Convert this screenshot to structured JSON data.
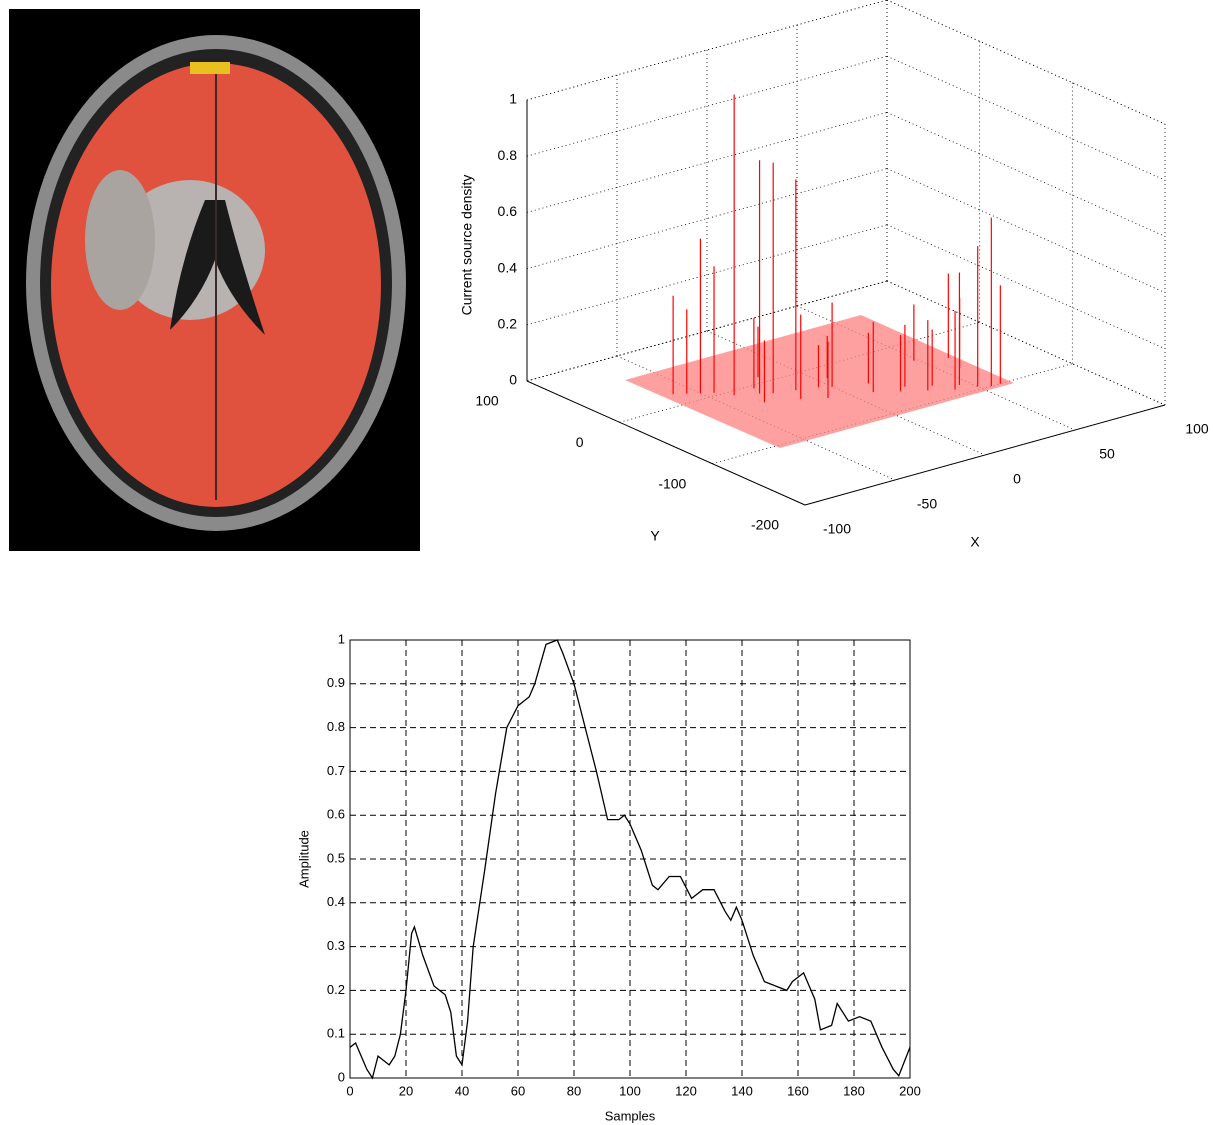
{
  "chart_data": [
    {
      "type": "stem3d",
      "xlabel": "X",
      "ylabel": "Y",
      "zlabel": "Current source density",
      "xlim": [
        -100,
        100
      ],
      "ylim": [
        -200,
        100
      ],
      "zlim": [
        0,
        1
      ],
      "xticks": [
        -100,
        -50,
        0,
        50,
        100
      ],
      "yticks": [
        -200,
        -100,
        0,
        100
      ],
      "zticks": [
        0,
        0.2,
        0.4,
        0.6,
        0.8,
        1
      ],
      "grid": true,
      "series": [
        {
          "color": "#ff0000",
          "x": [
            -40,
            -30,
            -25,
            -15,
            -50,
            -60,
            -20,
            10,
            40,
            55,
            50,
            60,
            45,
            -10,
            20,
            -45,
            0,
            30,
            -35,
            15,
            -55,
            -5,
            25,
            35,
            58,
            62,
            -28,
            5,
            48,
            -18
          ],
          "y": [
            -7,
            -15,
            -20,
            -25,
            10,
            20,
            -40,
            -60,
            -90,
            -100,
            -95,
            -100,
            -85,
            -50,
            -70,
            5,
            -35,
            -80,
            -30,
            -45,
            15,
            -30,
            -65,
            -75,
            -60,
            -40,
            -5,
            -20,
            -30,
            10
          ],
          "z": [
            1.07,
            0.83,
            0.82,
            0.75,
            0.55,
            0.35,
            0.3,
            0.25,
            0.28,
            0.6,
            0.5,
            0.35,
            0.4,
            0.2,
            0.2,
            0.45,
            0.3,
            0.25,
            0.22,
            0.18,
            0.3,
            0.15,
            0.22,
            0.2,
            0.25,
            0.3,
            0.25,
            0.15,
            0.2,
            0.18
          ]
        }
      ]
    },
    {
      "type": "line",
      "xlabel": "Samples",
      "ylabel": "Amplitude",
      "xlim": [
        0,
        200
      ],
      "ylim": [
        0,
        1
      ],
      "xticks": [
        0,
        20,
        40,
        60,
        80,
        100,
        120,
        140,
        160,
        180,
        200
      ],
      "yticks": [
        0,
        0.1,
        0.2,
        0.3,
        0.4,
        0.5,
        0.6,
        0.7,
        0.8,
        0.9,
        1
      ],
      "grid": true,
      "color": "#000000",
      "x": [
        0,
        2,
        4,
        6,
        8,
        10,
        12,
        14,
        16,
        18,
        20,
        22,
        23,
        26,
        30,
        34,
        36,
        38,
        40,
        42,
        44,
        48,
        52,
        56,
        60,
        64,
        66,
        70,
        74,
        76,
        80,
        84,
        88,
        92,
        96,
        98,
        100,
        104,
        108,
        110,
        114,
        118,
        122,
        126,
        130,
        134,
        136,
        138,
        140,
        144,
        148,
        152,
        156,
        158,
        162,
        166,
        168,
        172,
        174,
        178,
        182,
        186,
        190,
        194,
        196,
        200
      ],
      "y": [
        0.07,
        0.08,
        0.05,
        0.02,
        0.0,
        0.05,
        0.04,
        0.03,
        0.05,
        0.1,
        0.2,
        0.33,
        0.345,
        0.28,
        0.21,
        0.19,
        0.15,
        0.05,
        0.03,
        0.13,
        0.3,
        0.47,
        0.65,
        0.8,
        0.85,
        0.87,
        0.9,
        0.99,
        1.0,
        0.97,
        0.9,
        0.8,
        0.7,
        0.59,
        0.59,
        0.6,
        0.58,
        0.52,
        0.44,
        0.43,
        0.46,
        0.46,
        0.41,
        0.43,
        0.43,
        0.38,
        0.36,
        0.39,
        0.36,
        0.28,
        0.22,
        0.21,
        0.2,
        0.22,
        0.24,
        0.18,
        0.11,
        0.12,
        0.17,
        0.13,
        0.14,
        0.13,
        0.07,
        0.02,
        0.005,
        0.07
      ]
    }
  ]
}
